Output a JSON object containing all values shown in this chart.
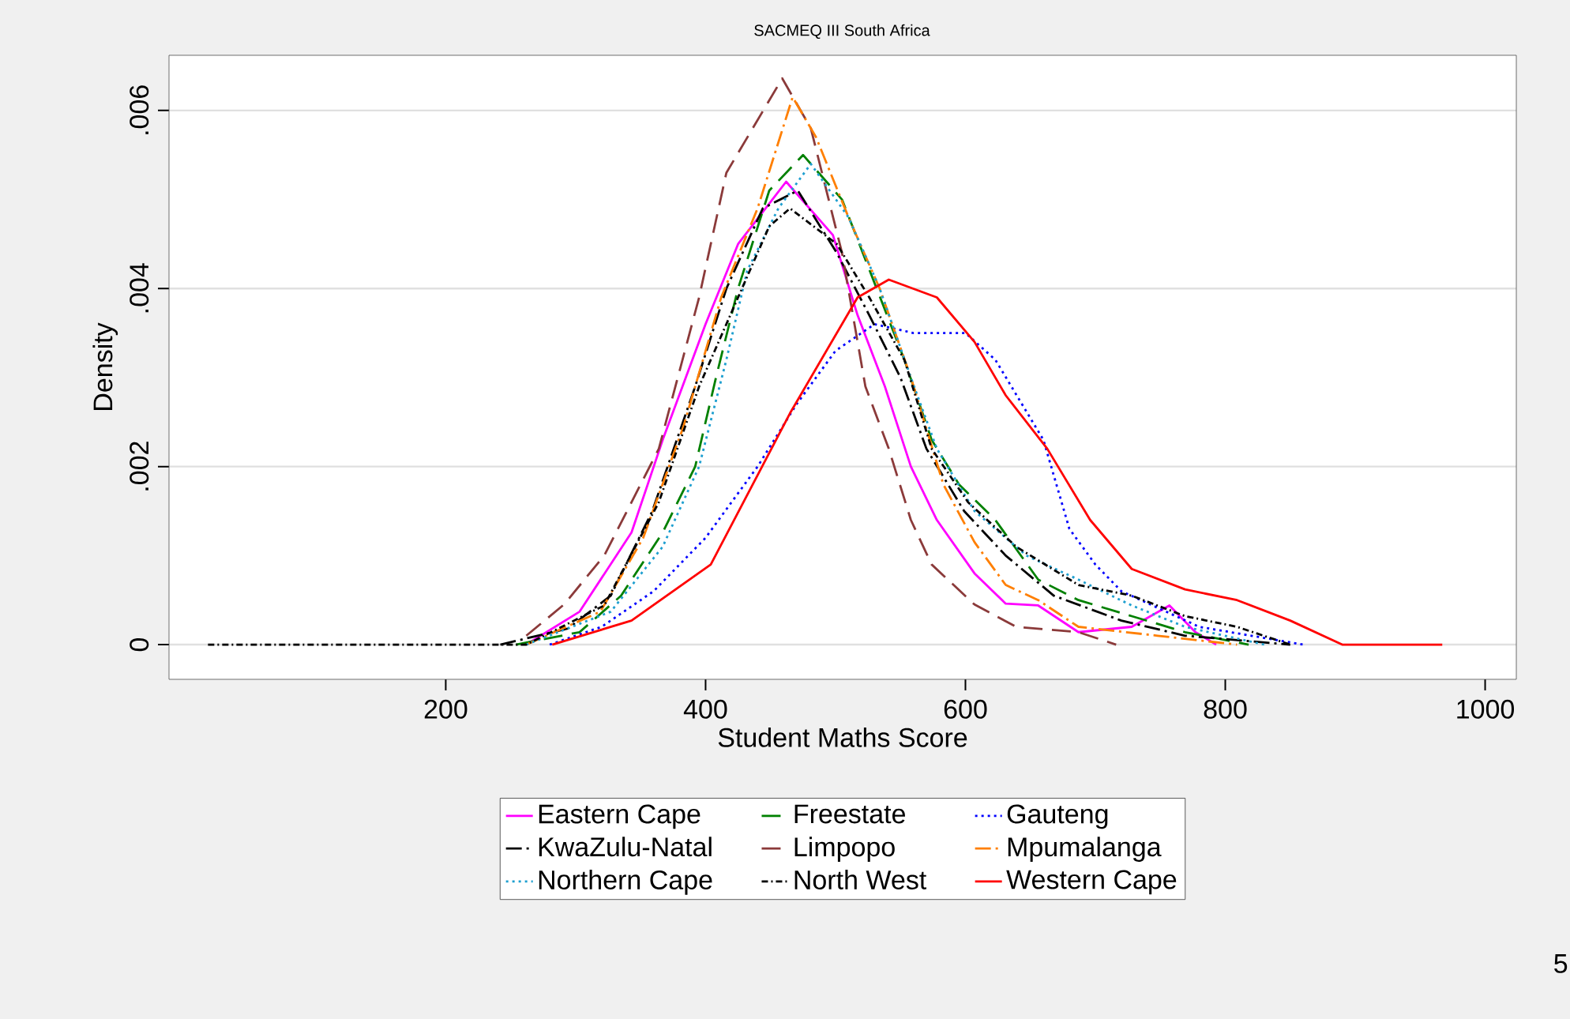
{
  "chart_data": {
    "type": "line",
    "title": "SACMEQ III South Africa",
    "xlabel": "Student Maths Score",
    "ylabel": "Density",
    "xlim": [
      -13,
      1024
    ],
    "ylim": [
      -0.00039,
      0.00662
    ],
    "xticks": [
      200,
      400,
      600,
      800,
      1000
    ],
    "yticks": [
      0,
      {
        "value": 0.002,
        "label": ".002"
      },
      {
        "value": 0.004,
        "label": ".004"
      },
      {
        "value": 0.006,
        "label": ".006"
      }
    ],
    "grid": "y",
    "legend": "bottom",
    "annotations": [
      "5"
    ],
    "series": [
      {
        "name": "Eastern Cape",
        "color": "#ff00ff",
        "line_style": "solid",
        "x": [
          262,
          303,
          343,
          367,
          400,
          425,
          462,
          498,
          517,
          538,
          558,
          578,
          607,
          631,
          656,
          687,
          728,
          757,
          777,
          793
        ],
        "values": [
          0,
          0.00037,
          0.00126,
          0.0023,
          0.0036,
          0.0045,
          0.0052,
          0.0046,
          0.0037,
          0.0029,
          0.002,
          0.0014,
          0.0008,
          0.00046,
          0.00044,
          0.00014,
          0.0002,
          0.00044,
          0.00014,
          0
        ]
      },
      {
        "name": "Freestate",
        "color": "#008000",
        "line_style": "dashed",
        "x": [
          254,
          303,
          335,
          367,
          392,
          408,
          425,
          449,
          475,
          505,
          529,
          553,
          574,
          595,
          623,
          656,
          687,
          728,
          769,
          818
        ],
        "values": [
          0,
          0.00014,
          0.00055,
          0.00126,
          0.002,
          0.003,
          0.004,
          0.0051,
          0.0055,
          0.005,
          0.0041,
          0.0032,
          0.0023,
          0.0018,
          0.0014,
          0.00073,
          0.0005,
          0.00032,
          0.00014,
          0
        ]
      },
      {
        "name": "Gauteng",
        "color": "#0000ff",
        "line_style": "dotted",
        "x": [
          280,
          320,
          360,
          400,
          440,
          470,
          500,
          530,
          560,
          600,
          623,
          660,
          680,
          700,
          720,
          750,
          780,
          820,
          860
        ],
        "values": [
          0,
          0.0002,
          0.0006,
          0.0012,
          0.002,
          0.0027,
          0.0033,
          0.0036,
          0.0035,
          0.0035,
          0.0032,
          0.0023,
          0.0013,
          0.0009,
          0.0006,
          0.0004,
          0.0002,
          0.0001,
          0
        ]
      },
      {
        "name": "KwaZulu-Natal",
        "color": "#000000",
        "line_style": "dashdot",
        "x": [
          242,
          294,
          327,
          359,
          392,
          416,
          444,
          471,
          501,
          526,
          550,
          570,
          599,
          631,
          668,
          720,
          769,
          850
        ],
        "values": [
          0,
          0.00018,
          0.00055,
          0.0015,
          0.0029,
          0.004,
          0.0049,
          0.0051,
          0.0044,
          0.0037,
          0.003,
          0.0022,
          0.0015,
          0.001,
          0.00055,
          0.00027,
          0.0001,
          0
        ]
      },
      {
        "name": "Limpopo",
        "color": "#8b3a3a",
        "line_style": "dashed",
        "x": [
          262,
          291,
          322,
          364,
          395,
          416,
          459,
          481,
          505,
          523,
          541,
          558,
          574,
          607,
          639,
          687,
          716
        ],
        "values": [
          0.0001,
          0.00045,
          0.001,
          0.0022,
          0.0039,
          0.0053,
          0.00636,
          0.0058,
          0.0044,
          0.0029,
          0.0022,
          0.0014,
          0.0009,
          0.00045,
          0.0002,
          0.00014,
          0
        ]
      },
      {
        "name": "Mpumalanga",
        "color": "#ff7f00",
        "line_style": "dashdot",
        "x": [
          262,
          319,
          352,
          383,
          412,
          440,
          467,
          485,
          510,
          534,
          558,
          583,
          607,
          631,
          656,
          687,
          748,
          809
        ],
        "values": [
          0,
          0.00037,
          0.0012,
          0.00245,
          0.0039,
          0.0049,
          0.00615,
          0.0057,
          0.0048,
          0.004,
          0.003,
          0.0018,
          0.00115,
          0.00067,
          0.0005,
          0.0002,
          0.0001,
          0
        ]
      },
      {
        "name": "Northern Cape",
        "color": "#1e9fd0",
        "line_style": "dotted",
        "x": [
          262,
          327,
          367,
          395,
          416,
          432,
          456,
          481,
          510,
          534,
          558,
          578,
          607,
          647,
          687,
          728,
          769,
          830
        ],
        "values": [
          0,
          0.00037,
          0.0011,
          0.002,
          0.0032,
          0.0042,
          0.0049,
          0.0054,
          0.0048,
          0.004,
          0.003,
          0.0022,
          0.0015,
          0.001,
          0.00073,
          0.00044,
          0.0002,
          0
        ]
      },
      {
        "name": "North West",
        "color": "#000000",
        "line_style": "dashdotdot",
        "x": [
          17,
          150,
          200,
          262,
          322,
          364,
          395,
          425,
          449,
          465,
          501,
          526,
          553,
          574,
          602,
          639,
          687,
          728,
          769,
          809,
          850
        ],
        "values": [
          0,
          0,
          0,
          0,
          0.00044,
          0.0016,
          0.0029,
          0.0039,
          0.0047,
          0.0049,
          0.0045,
          0.0039,
          0.0032,
          0.0022,
          0.0016,
          0.0011,
          0.00067,
          0.00055,
          0.00032,
          0.0002,
          0
        ]
      },
      {
        "name": "Western Cape",
        "color": "#ff0000",
        "line_style": "solid",
        "x": [
          282,
          343,
          404,
          465,
          517,
          541,
          578,
          607,
          631,
          663,
          696,
          728,
          769,
          809,
          850,
          890,
          967
        ],
        "values": [
          0,
          0.00027,
          0.0009,
          0.0026,
          0.0039,
          0.0041,
          0.0039,
          0.0034,
          0.0028,
          0.0022,
          0.0014,
          0.00085,
          0.00062,
          0.0005,
          0.00027,
          0,
          0
        ]
      }
    ]
  }
}
